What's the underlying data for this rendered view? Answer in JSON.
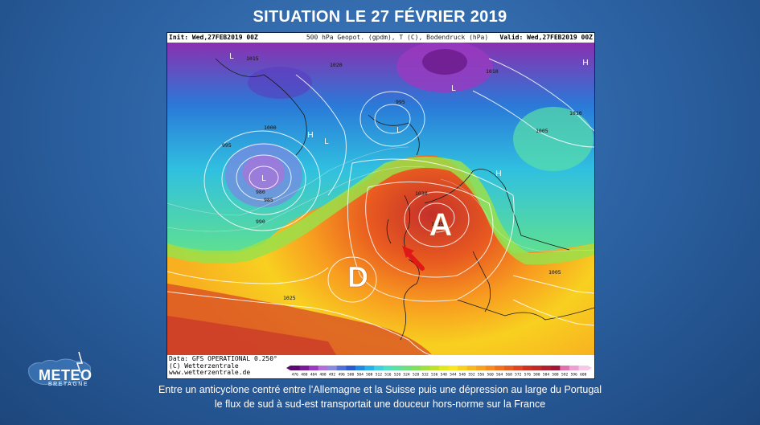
{
  "title": "SITUATION LE 27 FÉVRIER 2019",
  "map": {
    "header_init": "Init: Wed,27FEB2019 00Z",
    "header_params": "500 hPa Geopot. (gpdm), T (C), Bodendruck (hPa)",
    "header_valid": "Valid: Wed,27FEB2019 00Z",
    "credit_lines": [
      "Data: GFS OPERATIONAL 0.250°",
      "(C) Wetterzentrale",
      "www.wetterzentrale.de"
    ],
    "pressure_centers": [
      {
        "label": "A",
        "type": "anticyclone"
      },
      {
        "label": "D",
        "type": "depression"
      }
    ],
    "small_labels": {
      "lows": [
        "L",
        "L",
        "L",
        "L",
        "L"
      ],
      "highs": [
        "H",
        "H",
        "H"
      ]
    },
    "isobar_labels": [
      "1015",
      "1020",
      "1010",
      "1005",
      "1000",
      "995",
      "990",
      "985",
      "980",
      "1025",
      "1030",
      "1035",
      "995",
      "1010",
      "1005"
    ],
    "colorbar_ticks": [
      "476",
      "480",
      "484",
      "488",
      "492",
      "496",
      "500",
      "504",
      "508",
      "512",
      "516",
      "520",
      "524",
      "528",
      "532",
      "536",
      "540",
      "544",
      "548",
      "552",
      "556",
      "560",
      "564",
      "568",
      "572",
      "576",
      "580",
      "584",
      "588",
      "592",
      "596",
      "600"
    ],
    "colorbar_colors": [
      "#5a0a6e",
      "#7a1a9a",
      "#9a3ac0",
      "#b070d8",
      "#8a8ae0",
      "#5070d8",
      "#2a5ad0",
      "#1e8ae0",
      "#28b0e8",
      "#3ed0e0",
      "#50e0c0",
      "#5ee0a0",
      "#6ee080",
      "#80e060",
      "#a0e040",
      "#c0e030",
      "#e0e820",
      "#f8e820",
      "#f8d020",
      "#f8b820",
      "#f8a020",
      "#f88820",
      "#f07020",
      "#e85a20",
      "#e04420",
      "#d03020",
      "#c02a28",
      "#b02030",
      "#a01838",
      "#e070b0",
      "#f0a0d0",
      "#f8c8e8"
    ],
    "pressure_unit": "hPa"
  },
  "caption": {
    "line1": "Entre un anticyclone centré entre l’Allemagne et la Suisse puis une dépression au large du Portugal",
    "line2": "le flux de sud à sud-est transportait une douceur hors-norme sur la France"
  },
  "logo": {
    "name": "METEO",
    "sub": "BRETAGNE"
  }
}
